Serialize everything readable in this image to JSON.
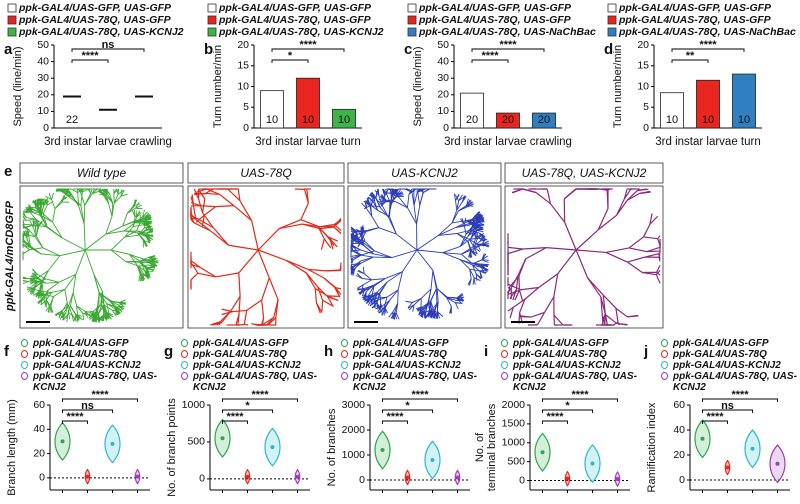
{
  "chart_data": [
    {
      "type": "dot",
      "panel": "a",
      "legend": [
        "ppk-GAL4/UAS-GFP, UAS-GFP",
        "ppk-GAL4/UAS-78Q, UAS-GFP",
        "ppk-GAL4/UAS-78Q, UAS-KCNJ2"
      ],
      "colors": [
        "#ffffff",
        "#e8251f",
        "#3cb44a"
      ],
      "values": [
        19,
        11,
        19
      ],
      "n_labels": [
        22,
        null,
        null
      ],
      "ylabel": "Speed (line/min)",
      "xlabel": "3rd instar larvae crawling",
      "ylim": [
        0,
        50
      ],
      "yticks": [
        0,
        10,
        20,
        30,
        40,
        50
      ],
      "comparisons": [
        "****",
        "ns"
      ]
    },
    {
      "type": "bar",
      "panel": "b",
      "legend": [
        "ppk-GAL4/UAS-GFP, UAS-GFP",
        "ppk-GAL4/UAS-78Q, UAS-GFP",
        "ppk-GAL4/UAS-78Q, UAS-KCNJ2"
      ],
      "colors": [
        "#ffffff",
        "#e8251f",
        "#3cb44a"
      ],
      "values": [
        9,
        12,
        4.5
      ],
      "n_labels": [
        10,
        10,
        10
      ],
      "ylabel": "Turn number/min",
      "xlabel": "3rd instar larvae turn",
      "ylim": [
        0,
        20
      ],
      "yticks": [
        0,
        5,
        10,
        15,
        20
      ],
      "comparisons": [
        "*",
        "****"
      ]
    },
    {
      "type": "bar",
      "panel": "c",
      "legend": [
        "ppk-GAL4/UAS-GFP, UAS-GFP",
        "ppk-GAL4/UAS-78Q, UAS-GFP",
        "ppk-GAL4/UAS-78Q, UAS-NaChBac"
      ],
      "colors": [
        "#ffffff",
        "#e8251f",
        "#2f7fc1"
      ],
      "values": [
        21,
        9,
        9
      ],
      "n_labels": [
        20,
        20,
        20
      ],
      "ylabel": "Speed (line/min)",
      "xlabel": "3rd instar larvae crawling",
      "ylim": [
        0,
        50
      ],
      "yticks": [
        0,
        10,
        20,
        30,
        40,
        50
      ],
      "comparisons": [
        "****",
        "****"
      ]
    },
    {
      "type": "bar",
      "panel": "d",
      "legend": [
        "ppk-GAL4/UAS-GFP, UAS-GFP",
        "ppk-GAL4/UAS-78Q, UAS-GFP",
        "ppk-GAL4/UAS-78Q, UAS-NaChBac"
      ],
      "colors": [
        "#ffffff",
        "#e8251f",
        "#2f7fc1"
      ],
      "values": [
        8.5,
        11.5,
        13
      ],
      "n_labels": [
        10,
        10,
        10
      ],
      "ylabel": "Turn number/min",
      "xlabel": "3rd instar larvae turn",
      "ylim": [
        0,
        20
      ],
      "yticks": [
        0,
        5,
        10,
        15,
        20
      ],
      "comparisons": [
        "**",
        "****"
      ]
    },
    {
      "type": "violin",
      "panel": "f",
      "legend": [
        "ppk-GAL4/UAS-GFP",
        "ppk-GAL4/UAS-78Q",
        "ppk-GAL4/UAS-KCNJ2",
        "ppk-GAL4/UAS-78Q, UAS-KCNJ2"
      ],
      "colors": [
        "#2aa84a",
        "#e8251f",
        "#2ab8d0",
        "#9b3fb5"
      ],
      "values": [
        30,
        1,
        28,
        1
      ],
      "ylabel": "Branch length (mm)",
      "ylim": [
        -10,
        60
      ],
      "yticks": [
        0,
        20,
        40,
        60
      ],
      "comparisons": [
        "****",
        "ns",
        "****"
      ]
    },
    {
      "type": "violin",
      "panel": "g",
      "legend": [
        "ppk-GAL4/UAS-GFP",
        "ppk-GAL4/UAS-78Q",
        "ppk-GAL4/UAS-KCNJ2",
        "ppk-GAL4/UAS-78Q, UAS-KCNJ2"
      ],
      "colors": [
        "#2aa84a",
        "#e8251f",
        "#2ab8d0",
        "#9b3fb5"
      ],
      "values": [
        550,
        30,
        430,
        30
      ],
      "ylabel": "No. of branch points",
      "ylim": [
        -150,
        1000
      ],
      "yticks": [
        0,
        500,
        1000
      ],
      "comparisons": [
        "****",
        "*",
        "****"
      ]
    },
    {
      "type": "violin",
      "panel": "h",
      "legend": [
        "ppk-GAL4/UAS-GFP",
        "ppk-GAL4/UAS-78Q",
        "ppk-GAL4/UAS-KCNJ2",
        "ppk-GAL4/UAS-78Q, UAS-KCNJ2"
      ],
      "colors": [
        "#2aa84a",
        "#e8251f",
        "#2ab8d0",
        "#9b3fb5"
      ],
      "values": [
        1200,
        100,
        800,
        100
      ],
      "ylabel": "No. of branches",
      "ylim": [
        -400,
        3000
      ],
      "yticks": [
        0,
        1000,
        2000,
        3000
      ],
      "comparisons": [
        "****",
        "*",
        "****"
      ]
    },
    {
      "type": "violin",
      "panel": "i",
      "legend": [
        "ppk-GAL4/UAS-GFP",
        "ppk-GAL4/UAS-78Q",
        "ppk-GAL4/UAS-KCNJ2",
        "ppk-GAL4/UAS-78Q, UAS-KCNJ2"
      ],
      "colors": [
        "#2aa84a",
        "#e8251f",
        "#2ab8d0",
        "#9b3fb5"
      ],
      "values": [
        750,
        50,
        450,
        40
      ],
      "ylabel": [
        "No. of",
        "terminal branches"
      ],
      "ylim": [
        -250,
        2000
      ],
      "yticks": [
        0,
        500,
        1000,
        1500,
        2000
      ],
      "comparisons": [
        "****",
        "*",
        "****"
      ]
    },
    {
      "type": "violin",
      "panel": "j",
      "legend": [
        "ppk-GAL4/UAS-GFP",
        "ppk-GAL4/UAS-78Q",
        "ppk-GAL4/UAS-KCNJ2",
        "ppk-GAL4/UAS-78Q, UAS-KCNJ2"
      ],
      "colors": [
        "#2aa84a",
        "#e8251f",
        "#2ab8d0",
        "#9b3fb5"
      ],
      "values": [
        33,
        10,
        25,
        13
      ],
      "ylabel": "Ramification index",
      "ylim": [
        -8,
        60
      ],
      "yticks": [
        0,
        20,
        40,
        60
      ],
      "comparisons": [
        "****",
        "ns",
        "****"
      ]
    }
  ],
  "image_panel": {
    "label": "e",
    "side_label": "ppk-GAL4/mCD8GFP",
    "titles": [
      "Wild type",
      "UAS-78Q",
      "UAS-KCNJ2",
      "UAS-78Q, UAS-KCNJ2"
    ]
  }
}
